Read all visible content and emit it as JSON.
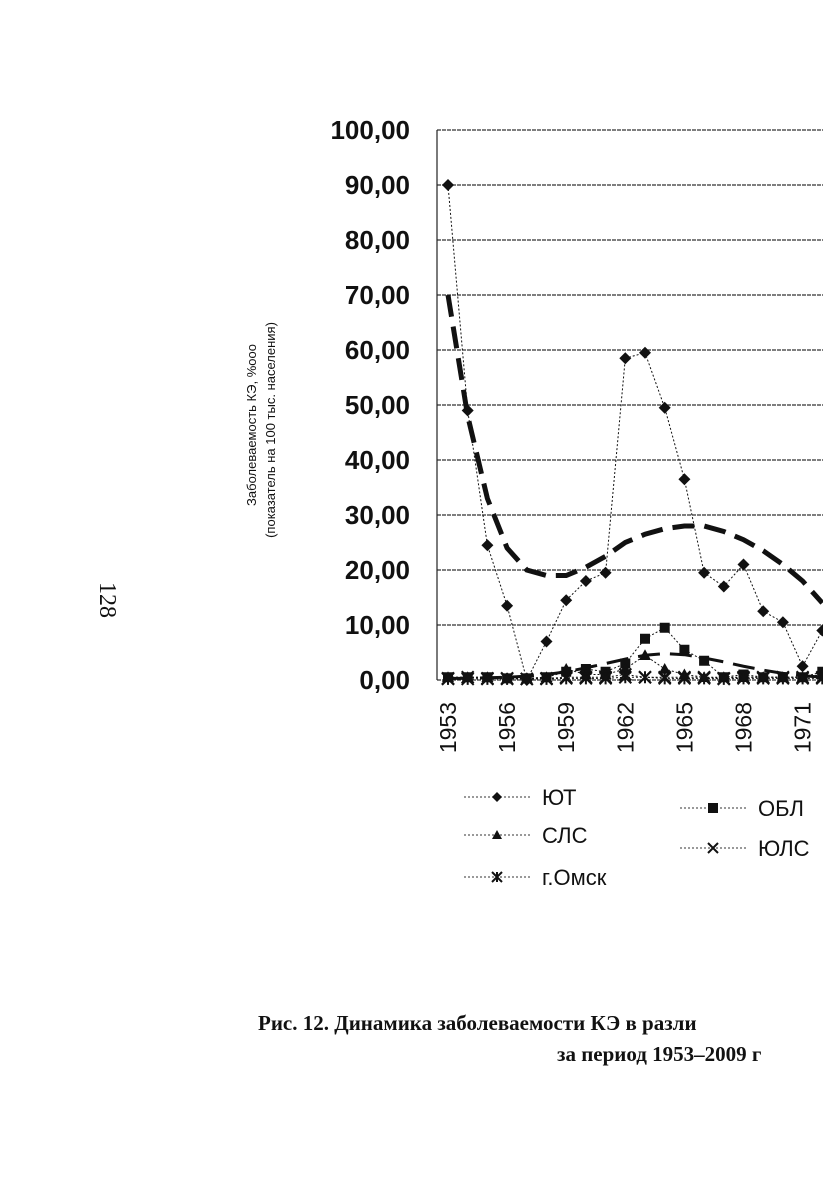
{
  "page_number": "128",
  "chart_data": {
    "type": "line",
    "ylabel": [
      "Заболеваемость КЭ, %ooo",
      "(показатель на 100 тыс. населения)"
    ],
    "categories": [
      "1953",
      null,
      null,
      "1956",
      null,
      null,
      "1959",
      null,
      null,
      "1962",
      null,
      null,
      "1965",
      null,
      null,
      "1968",
      null,
      null,
      "1971",
      null
    ],
    "ylim": [
      0,
      100
    ],
    "yticks": [
      {
        "value": 0,
        "label": "0,00"
      },
      {
        "value": 10,
        "label": "10,00"
      },
      {
        "value": 20,
        "label": "20,00"
      },
      {
        "value": 30,
        "label": "30,00"
      },
      {
        "value": 40,
        "label": "40,00"
      },
      {
        "value": 50,
        "label": "50,00"
      },
      {
        "value": 60,
        "label": "60,00"
      },
      {
        "value": 70,
        "label": "70,00"
      },
      {
        "value": 80,
        "label": "80,00"
      },
      {
        "value": 90,
        "label": "90,00"
      },
      {
        "value": 100,
        "label": "100,00"
      }
    ],
    "grid": true,
    "series": [
      {
        "name": "ЮТ",
        "marker": "diamond",
        "color": "#111",
        "values": [
          90,
          49,
          24.5,
          13.5,
          0,
          7,
          14.5,
          18,
          19.5,
          58.5,
          59.5,
          49.5,
          36.5,
          19.5,
          17,
          21,
          12.5,
          10.5,
          2.5,
          9
        ]
      },
      {
        "name": "ОБЛ",
        "marker": "square",
        "color": "#111",
        "values": [
          0.5,
          0.5,
          0.5,
          0.3,
          0.3,
          0.5,
          1.5,
          2,
          1.5,
          3,
          7.5,
          9.5,
          5.5,
          3.5,
          0.5,
          1,
          0.5,
          0.5,
          0.5,
          1.5
        ]
      },
      {
        "name": "СЛС",
        "marker": "triangle",
        "color": "#111",
        "values": [
          0.5,
          0.5,
          0.5,
          0.3,
          0.3,
          0.5,
          2,
          1,
          1,
          2,
          4.5,
          2,
          1,
          0.5,
          0.5,
          0.5,
          0.5,
          0.5,
          0.5,
          1
        ]
      },
      {
        "name": "ЮЛС",
        "marker": "x",
        "color": "#111",
        "values": [
          0.3,
          0.5,
          0.3,
          0.3,
          0.2,
          0.3,
          0.5,
          0.5,
          0.5,
          1,
          0.5,
          0.5,
          0.5,
          0.5,
          0.3,
          0.5,
          0.5,
          0.5,
          0.5,
          0.5
        ]
      },
      {
        "name": "г.Омск",
        "marker": "star",
        "color": "#111",
        "values": [
          0.2,
          0.2,
          0.2,
          0.2,
          0.2,
          0.2,
          0.3,
          0.3,
          0.3,
          0.5,
          0.5,
          0.3,
          0.3,
          0.3,
          0.2,
          0.3,
          0.3,
          0.3,
          0.3,
          0.3
        ]
      }
    ],
    "trendlines": [
      {
        "color": "#111",
        "width": 5,
        "values": [
          70,
          48,
          33,
          24,
          20,
          19,
          19,
          20.5,
          22.5,
          25,
          26.5,
          27.5,
          28,
          28,
          27,
          25.5,
          23.5,
          21,
          18,
          14
        ]
      },
      {
        "color": "#111",
        "width": 3,
        "values": [
          0.3,
          0.3,
          0.4,
          0.5,
          0.7,
          1,
          1.5,
          2.2,
          3,
          3.8,
          4.5,
          4.8,
          4.6,
          4,
          3.3,
          2.5,
          1.8,
          1.2,
          0.8,
          0.5
        ]
      }
    ]
  },
  "caption": [
    "Рис. 12. Динамика заболеваемости КЭ в разли",
    "за период 1953–2009 г"
  ]
}
